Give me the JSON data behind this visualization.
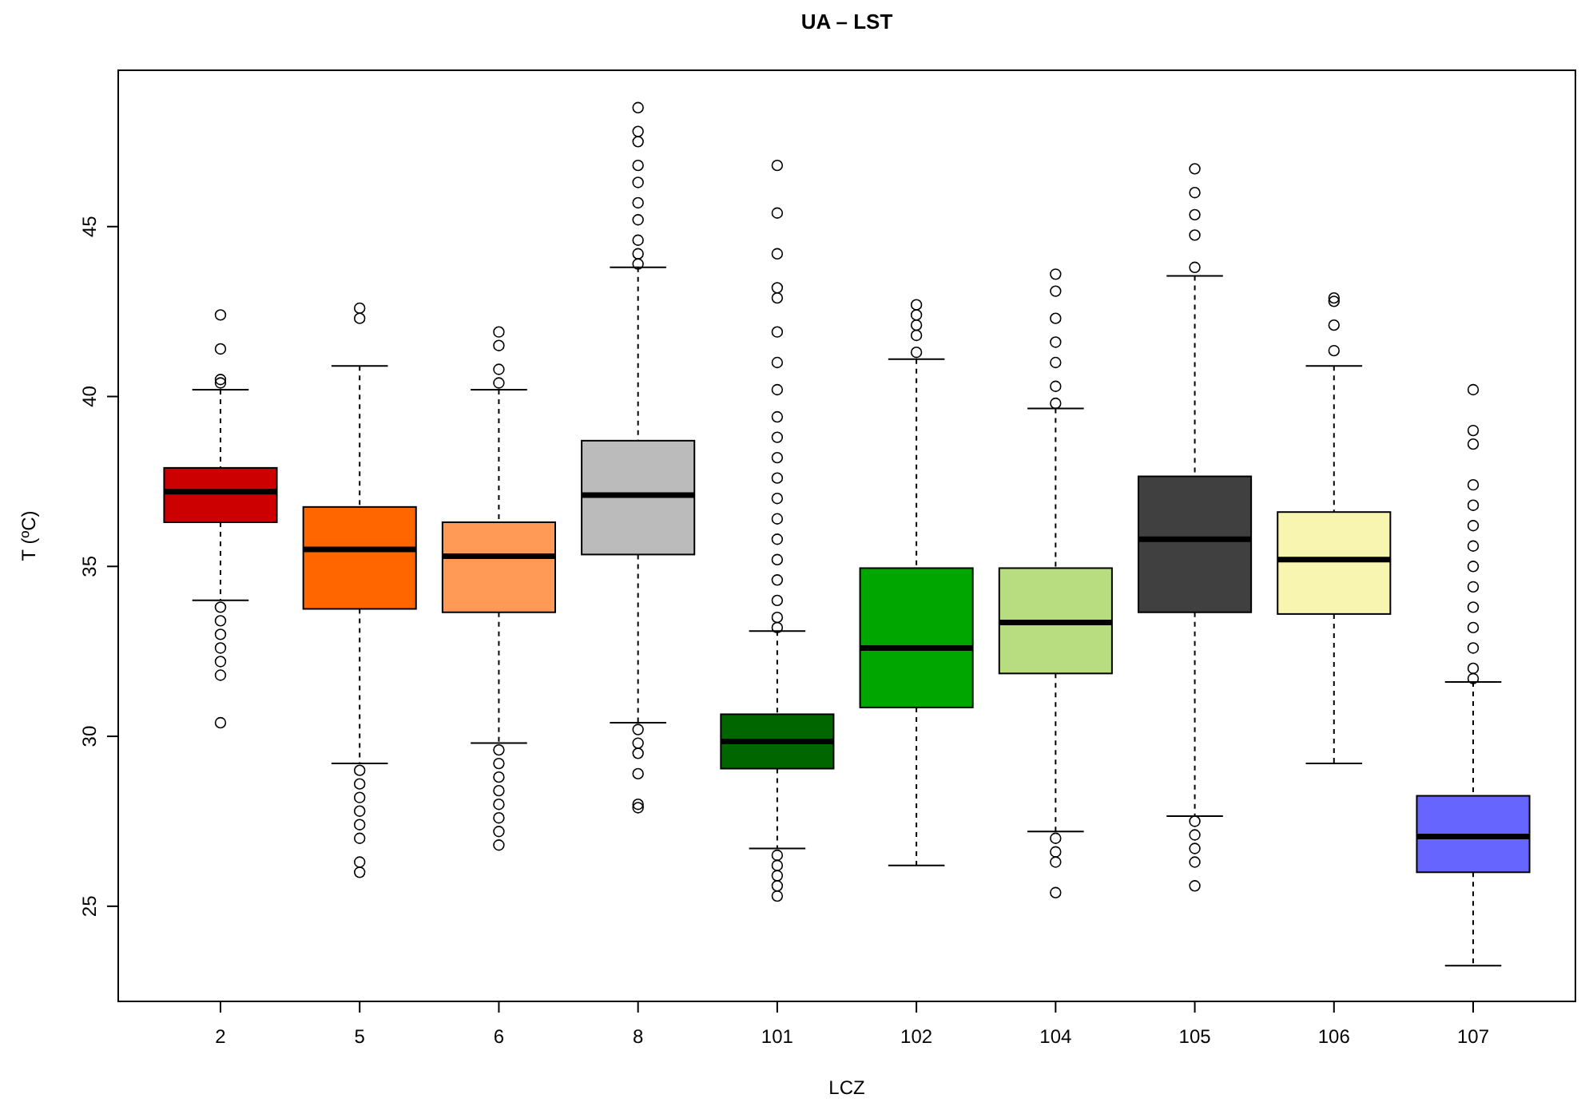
{
  "chart_data": {
    "type": "box",
    "title": "UA – LST",
    "xlabel": "LCZ",
    "ylabel": "T (ºC)",
    "categories": [
      "2",
      "5",
      "6",
      "8",
      "101",
      "102",
      "104",
      "105",
      "106",
      "107"
    ],
    "colors": [
      "#cc0000",
      "#ff6600",
      "#ff9955",
      "#bbbbbb",
      "#006600",
      "#00a600",
      "#b8dd80",
      "#404040",
      "#f8f5b0",
      "#6666ff"
    ],
    "ylim": [
      22.2,
      49.6
    ],
    "yticks": [
      25,
      30,
      35,
      40,
      45
    ],
    "grid": false,
    "boxes": [
      {
        "low": 34.0,
        "q1": 36.3,
        "median": 37.2,
        "q3": 37.9,
        "high": 40.2,
        "outliers": [
          42.4,
          41.4,
          40.5,
          40.4,
          33.8,
          33.4,
          33.0,
          32.6,
          32.2,
          31.8,
          30.4
        ]
      },
      {
        "low": 29.2,
        "q1": 33.75,
        "median": 35.5,
        "q3": 36.75,
        "high": 40.9,
        "outliers": [
          42.6,
          42.3,
          29.0,
          28.6,
          28.2,
          27.8,
          27.4,
          27.0,
          26.3,
          26.0
        ]
      },
      {
        "low": 29.8,
        "q1": 33.65,
        "median": 35.3,
        "q3": 36.3,
        "high": 40.2,
        "outliers": [
          41.9,
          41.5,
          40.8,
          40.4,
          29.6,
          29.2,
          28.8,
          28.4,
          28.0,
          27.6,
          27.2,
          26.8
        ]
      },
      {
        "low": 30.4,
        "q1": 35.35,
        "median": 37.1,
        "q3": 38.7,
        "high": 43.8,
        "outliers": [
          48.5,
          47.8,
          47.5,
          46.8,
          46.3,
          45.7,
          45.2,
          44.6,
          44.2,
          43.9,
          30.2,
          29.8,
          29.5,
          28.9,
          28.0,
          27.9
        ]
      },
      {
        "low": 26.7,
        "q1": 29.05,
        "median": 29.85,
        "q3": 30.65,
        "high": 33.1,
        "outliers": [
          46.8,
          45.4,
          44.2,
          43.2,
          42.9,
          41.9,
          41.0,
          40.2,
          39.4,
          38.8,
          38.2,
          37.6,
          37.0,
          36.4,
          35.8,
          35.2,
          34.6,
          34.0,
          33.5,
          33.2,
          26.5,
          26.2,
          25.9,
          25.6,
          25.3
        ]
      },
      {
        "low": 26.2,
        "q1": 30.85,
        "median": 32.6,
        "q3": 34.95,
        "high": 41.1,
        "outliers": [
          42.7,
          42.4,
          42.1,
          41.8,
          41.3
        ]
      },
      {
        "low": 27.2,
        "q1": 31.85,
        "median": 33.35,
        "q3": 34.95,
        "high": 39.65,
        "outliers": [
          43.6,
          43.1,
          42.3,
          41.6,
          41.0,
          40.3,
          39.8,
          27.0,
          26.6,
          26.3,
          25.4
        ]
      },
      {
        "low": 27.65,
        "q1": 33.65,
        "median": 35.8,
        "q3": 37.65,
        "high": 43.55,
        "outliers": [
          46.7,
          46.0,
          45.35,
          44.75,
          43.8,
          27.5,
          27.1,
          26.7,
          26.3,
          25.6
        ]
      },
      {
        "low": 29.2,
        "q1": 33.6,
        "median": 35.2,
        "q3": 36.6,
        "high": 40.9,
        "outliers": [
          42.9,
          42.8,
          42.1,
          41.35
        ]
      },
      {
        "low": 23.25,
        "q1": 26.0,
        "median": 27.05,
        "q3": 28.25,
        "high": 31.6,
        "outliers": [
          40.2,
          39.0,
          38.6,
          37.4,
          36.8,
          36.2,
          35.6,
          35.0,
          34.4,
          33.8,
          33.2,
          32.6,
          32.0,
          31.7
        ]
      }
    ]
  }
}
